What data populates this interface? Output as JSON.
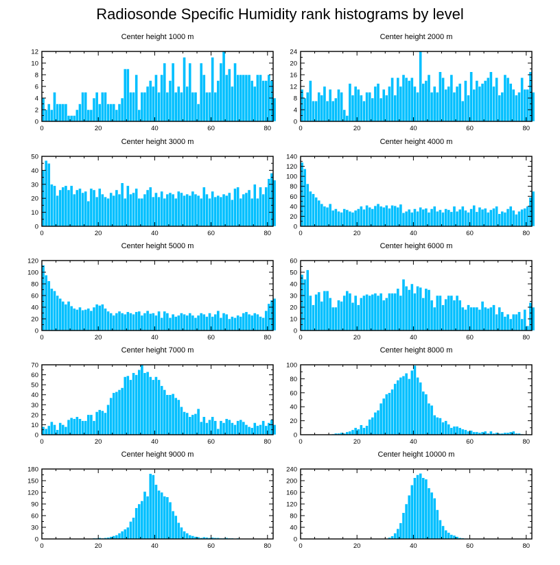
{
  "figure": {
    "title": "Radiosonde Specific Humidity rank histograms by level",
    "bar_color": "#00BFFF",
    "bar_edge_color": "#FFFFFF",
    "frame_color": "#000000"
  },
  "chart_data": [
    {
      "type": "bar",
      "title": "Center height 1000 m",
      "xlim": [
        0,
        82
      ],
      "ylim": [
        0,
        12
      ],
      "xticks": [
        0,
        20,
        40,
        60,
        80
      ],
      "yticks": [
        0,
        2,
        4,
        6,
        8,
        10,
        12
      ],
      "values": [
        4,
        2,
        3,
        2,
        5,
        3,
        3,
        3,
        3,
        1,
        1,
        1,
        2,
        3,
        5,
        5,
        2,
        2,
        4,
        5,
        3,
        5,
        5,
        3,
        3,
        3,
        2,
        3,
        4,
        9,
        9,
        5,
        5,
        8,
        2,
        5,
        5,
        6,
        7,
        6,
        8,
        5,
        8,
        10,
        5,
        7,
        10,
        5,
        6,
        5,
        11,
        6,
        10,
        5,
        5,
        3,
        10,
        8,
        5,
        5,
        11,
        5,
        7,
        10,
        12,
        8,
        9,
        6,
        10,
        8,
        8,
        8,
        8,
        8,
        7,
        6,
        8,
        8,
        7,
        7,
        8,
        7,
        4
      ]
    },
    {
      "type": "bar",
      "title": "Center height 2000 m",
      "xlim": [
        0,
        82
      ],
      "ylim": [
        0,
        24
      ],
      "xticks": [
        0,
        20,
        40,
        60,
        80
      ],
      "yticks": [
        0,
        4,
        8,
        12,
        16,
        20,
        24
      ],
      "values": [
        11,
        8,
        10,
        14,
        7,
        7,
        10,
        9,
        12,
        7,
        11,
        7,
        8,
        11,
        10,
        4,
        2,
        13,
        9,
        12,
        11,
        9,
        7,
        10,
        10,
        8,
        12,
        13,
        8,
        11,
        9,
        12,
        15,
        9,
        15,
        12,
        16,
        15,
        14,
        15,
        12,
        10,
        24,
        13,
        14,
        16,
        10,
        12,
        10,
        17,
        15,
        11,
        12,
        16,
        10,
        12,
        13,
        7,
        14,
        9,
        17,
        11,
        14,
        12,
        13,
        14,
        15,
        17,
        12,
        15,
        9,
        10,
        16,
        15,
        13,
        11,
        9,
        10,
        15,
        11,
        11,
        17,
        10
      ]
    },
    {
      "type": "bar",
      "title": "Center height 3000 m",
      "xlim": [
        0,
        82
      ],
      "ylim": [
        0,
        50
      ],
      "xticks": [
        0,
        20,
        40,
        60,
        80
      ],
      "yticks": [
        0,
        10,
        20,
        30,
        40,
        50
      ],
      "values": [
        40,
        47,
        45,
        30,
        29,
        22,
        26,
        28,
        29,
        26,
        29,
        23,
        26,
        27,
        24,
        25,
        18,
        27,
        26,
        21,
        27,
        23,
        21,
        20,
        24,
        22,
        26,
        23,
        31,
        20,
        29,
        23,
        24,
        27,
        20,
        20,
        23,
        26,
        28,
        21,
        24,
        21,
        25,
        20,
        23,
        24,
        23,
        20,
        25,
        24,
        22,
        23,
        22,
        25,
        23,
        22,
        20,
        28,
        23,
        20,
        25,
        21,
        22,
        21,
        23,
        22,
        24,
        19,
        27,
        28,
        20,
        23,
        24,
        26,
        20,
        30,
        20,
        28,
        23,
        28,
        34,
        38,
        33
      ]
    },
    {
      "type": "bar",
      "title": "Center height 4000 m",
      "xlim": [
        0,
        82
      ],
      "ylim": [
        0,
        140
      ],
      "xticks": [
        0,
        20,
        40,
        60,
        80
      ],
      "yticks": [
        0,
        20,
        40,
        60,
        80,
        100,
        120,
        140
      ],
      "values": [
        128,
        115,
        85,
        70,
        65,
        58,
        52,
        45,
        40,
        38,
        45,
        32,
        35,
        30,
        28,
        35,
        33,
        30,
        28,
        32,
        35,
        40,
        34,
        42,
        38,
        35,
        41,
        45,
        40,
        38,
        42,
        36,
        42,
        41,
        38,
        44,
        27,
        30,
        34,
        28,
        35,
        30,
        38,
        34,
        36,
        28,
        35,
        40,
        30,
        33,
        28,
        35,
        33,
        29,
        40,
        30,
        34,
        40,
        32,
        28,
        35,
        42,
        29,
        38,
        34,
        36,
        28,
        33,
        36,
        40,
        25,
        30,
        28,
        35,
        40,
        32,
        24,
        30,
        34,
        36,
        40,
        58,
        70
      ]
    },
    {
      "type": "bar",
      "title": "Center height 5000 m",
      "xlim": [
        0,
        82
      ],
      "ylim": [
        0,
        120
      ],
      "xticks": [
        0,
        20,
        40,
        60,
        80
      ],
      "yticks": [
        0,
        20,
        40,
        60,
        80,
        100,
        120
      ],
      "values": [
        112,
        95,
        85,
        72,
        68,
        60,
        55,
        50,
        45,
        50,
        42,
        38,
        36,
        40,
        35,
        36,
        38,
        34,
        40,
        45,
        43,
        45,
        38,
        33,
        30,
        26,
        30,
        33,
        30,
        28,
        32,
        30,
        28,
        32,
        33,
        26,
        30,
        34,
        29,
        30,
        26,
        33,
        22,
        33,
        30,
        22,
        28,
        24,
        26,
        30,
        28,
        26,
        30,
        26,
        22,
        26,
        30,
        28,
        24,
        30,
        24,
        28,
        34,
        22,
        30,
        28,
        20,
        24,
        22,
        26,
        24,
        30,
        32,
        28,
        26,
        30,
        28,
        24,
        22,
        34,
        46,
        52,
        55
      ]
    },
    {
      "type": "bar",
      "title": "Center height 6000 m",
      "xlim": [
        0,
        82
      ],
      "ylim": [
        0,
        60
      ],
      "xticks": [
        0,
        20,
        40,
        60,
        80
      ],
      "yticks": [
        0,
        10,
        20,
        30,
        40,
        50,
        60
      ],
      "values": [
        48,
        44,
        52,
        30,
        22,
        31,
        33,
        25,
        34,
        34,
        28,
        20,
        20,
        26,
        25,
        30,
        34,
        32,
        24,
        30,
        22,
        28,
        30,
        31,
        30,
        31,
        32,
        30,
        32,
        26,
        28,
        32,
        32,
        32,
        36,
        30,
        44,
        38,
        35,
        40,
        32,
        38,
        37,
        28,
        36,
        35,
        26,
        20,
        30,
        30,
        22,
        27,
        30,
        30,
        26,
        30,
        26,
        20,
        18,
        22,
        20,
        20,
        20,
        18,
        25,
        20,
        19,
        20,
        22,
        14,
        20,
        16,
        12,
        14,
        10,
        14,
        14,
        16,
        10,
        18,
        4,
        24,
        20
      ]
    },
    {
      "type": "bar",
      "title": "Center height 7000 m",
      "xlim": [
        0,
        82
      ],
      "ylim": [
        0,
        70
      ],
      "xticks": [
        0,
        20,
        40,
        60,
        80
      ],
      "yticks": [
        0,
        10,
        20,
        30,
        40,
        50,
        60,
        70
      ],
      "values": [
        8,
        6,
        9,
        13,
        10,
        5,
        12,
        10,
        8,
        15,
        17,
        16,
        18,
        16,
        14,
        14,
        20,
        20,
        14,
        23,
        25,
        24,
        22,
        30,
        37,
        42,
        43,
        45,
        47,
        58,
        59,
        55,
        62,
        60,
        65,
        70,
        62,
        63,
        58,
        55,
        58,
        55,
        49,
        45,
        40,
        40,
        41,
        37,
        35,
        28,
        23,
        22,
        18,
        20,
        21,
        26,
        13,
        18,
        12,
        15,
        18,
        14,
        6,
        14,
        12,
        16,
        15,
        12,
        10,
        14,
        15,
        13,
        10,
        8,
        7,
        12,
        9,
        10,
        14,
        9,
        12,
        15,
        10
      ]
    },
    {
      "type": "bar",
      "title": "Center height 8000 m",
      "xlim": [
        0,
        82
      ],
      "ylim": [
        0,
        100
      ],
      "xticks": [
        0,
        20,
        40,
        60,
        80
      ],
      "yticks": [
        0,
        20,
        40,
        60,
        80,
        100
      ],
      "values": [
        0,
        0,
        0,
        0,
        0,
        0,
        0,
        0,
        0,
        0,
        0,
        1,
        2,
        2,
        3,
        2,
        4,
        5,
        7,
        10,
        8,
        14,
        10,
        13,
        22,
        25,
        32,
        35,
        45,
        52,
        58,
        60,
        65,
        73,
        78,
        82,
        84,
        88,
        80,
        92,
        99,
        82,
        75,
        62,
        58,
        45,
        42,
        28,
        25,
        24,
        18,
        20,
        15,
        10,
        12,
        12,
        10,
        8,
        7,
        5,
        6,
        4,
        4,
        3,
        4,
        5,
        2,
        5,
        2,
        3,
        2,
        2,
        3,
        3,
        4,
        5,
        2,
        2,
        1,
        0,
        0,
        0,
        0
      ]
    },
    {
      "type": "bar",
      "title": "Center height 9000 m",
      "xlim": [
        0,
        82
      ],
      "ylim": [
        0,
        180
      ],
      "xticks": [
        0,
        20,
        40,
        60,
        80
      ],
      "yticks": [
        0,
        30,
        60,
        90,
        120,
        150,
        180
      ],
      "values": [
        0,
        0,
        0,
        0,
        0,
        0,
        0,
        0,
        0,
        0,
        0,
        0,
        0,
        0,
        0,
        0,
        0,
        0,
        2,
        2,
        3,
        2,
        3,
        4,
        6,
        8,
        10,
        15,
        20,
        25,
        30,
        45,
        55,
        80,
        90,
        98,
        122,
        110,
        168,
        165,
        140,
        125,
        120,
        110,
        108,
        95,
        72,
        60,
        42,
        30,
        20,
        15,
        10,
        8,
        6,
        5,
        3,
        5,
        4,
        3,
        4,
        3,
        3,
        2,
        2,
        3,
        2,
        2,
        1,
        2,
        0,
        0,
        1,
        0,
        0,
        0,
        0,
        0,
        0,
        0,
        0,
        0,
        0
      ]
    },
    {
      "type": "bar",
      "title": "Center height 10000 m",
      "xlim": [
        0,
        82
      ],
      "ylim": [
        0,
        240
      ],
      "xticks": [
        0,
        20,
        40,
        60,
        80
      ],
      "yticks": [
        0,
        40,
        80,
        120,
        160,
        200,
        240
      ],
      "values": [
        0,
        0,
        0,
        0,
        0,
        0,
        0,
        0,
        0,
        0,
        0,
        0,
        0,
        0,
        0,
        0,
        0,
        0,
        0,
        0,
        0,
        0,
        0,
        0,
        0,
        0,
        0,
        0,
        0,
        0,
        2,
        5,
        10,
        20,
        35,
        55,
        90,
        120,
        150,
        185,
        210,
        220,
        225,
        210,
        205,
        175,
        160,
        140,
        100,
        65,
        45,
        30,
        22,
        15,
        12,
        8,
        4,
        3,
        2,
        1,
        1,
        1,
        0,
        0,
        0,
        0,
        0,
        0,
        0,
        0,
        0,
        0,
        0,
        0,
        0,
        0,
        0,
        0,
        0,
        0,
        0,
        0,
        0
      ]
    }
  ]
}
